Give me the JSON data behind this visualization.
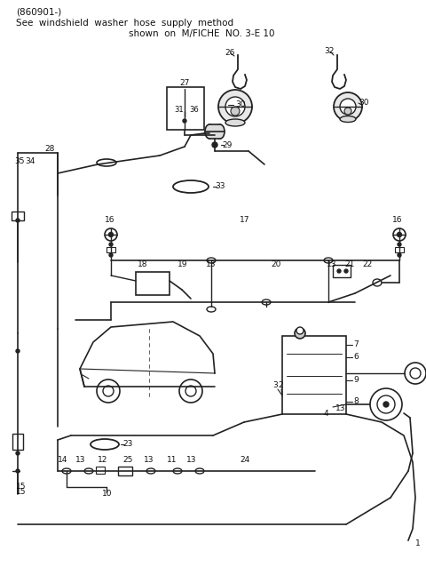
{
  "title_line1": "(860901-)",
  "title_line2": "See  windshield  washer  hose  supply  method",
  "title_line3": "shown  on  M/FICHE  NO. 3-E 10",
  "bg_color": "#ffffff",
  "line_color": "#222222",
  "text_color": "#111111",
  "fig_width": 4.8,
  "fig_height": 6.38,
  "dpi": 100
}
